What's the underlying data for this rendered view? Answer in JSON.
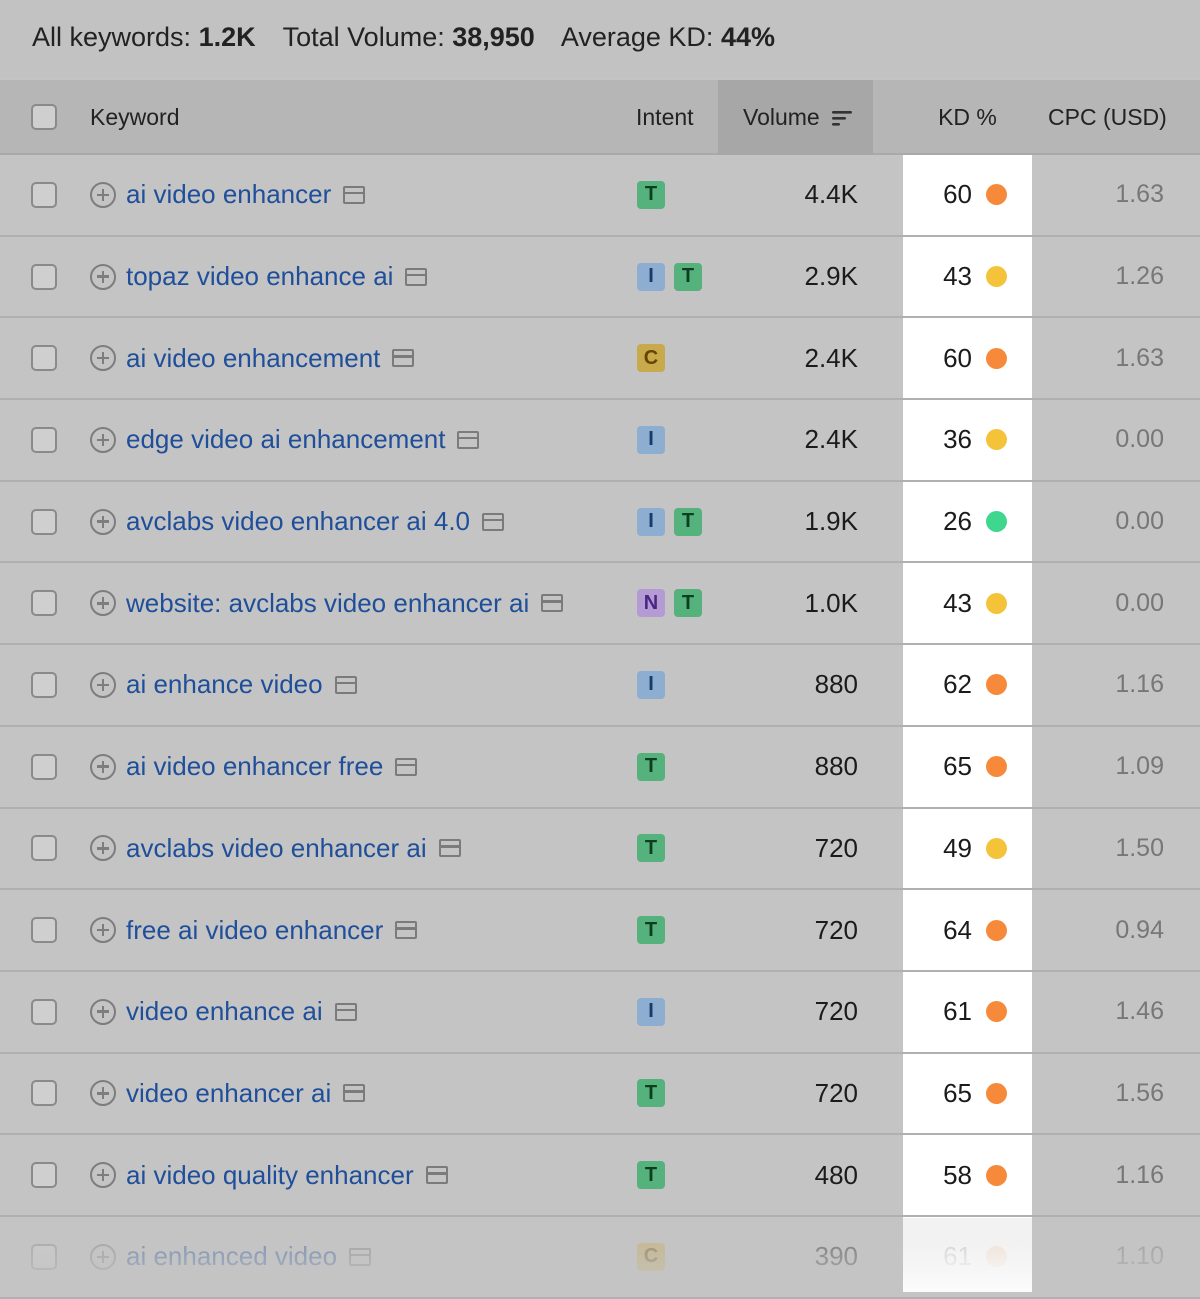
{
  "summary": {
    "all_keywords_label": "All keywords:",
    "all_keywords_value": "1.2K",
    "total_volume_label": "Total Volume:",
    "total_volume_value": "38,950",
    "avg_kd_label": "Average KD:",
    "avg_kd_value": "44%"
  },
  "columns": {
    "keyword": "Keyword",
    "intent": "Intent",
    "volume": "Volume",
    "kd": "KD %",
    "cpc": "CPC (USD)"
  },
  "colors": {
    "kd_orange": "#f68a3a",
    "kd_yellow": "#f5c33a",
    "kd_green": "#3fd68d",
    "keyword_link": "#1f4f9a"
  },
  "rows": [
    {
      "keyword": "ai video enhancer",
      "intents": [
        "T"
      ],
      "volume": "4.4K",
      "kd": "60",
      "kd_level": "orange",
      "cpc": "1.63"
    },
    {
      "keyword": "topaz video enhance ai",
      "intents": [
        "I",
        "T"
      ],
      "volume": "2.9K",
      "kd": "43",
      "kd_level": "yellow",
      "cpc": "1.26"
    },
    {
      "keyword": "ai video enhancement",
      "intents": [
        "C"
      ],
      "volume": "2.4K",
      "kd": "60",
      "kd_level": "orange",
      "cpc": "1.63"
    },
    {
      "keyword": "edge video ai enhancement",
      "intents": [
        "I"
      ],
      "volume": "2.4K",
      "kd": "36",
      "kd_level": "yellow",
      "cpc": "0.00"
    },
    {
      "keyword": "avclabs video enhancer ai 4.0",
      "intents": [
        "I",
        "T"
      ],
      "volume": "1.9K",
      "kd": "26",
      "kd_level": "green",
      "cpc": "0.00"
    },
    {
      "keyword": "website: avclabs video enhancer ai",
      "intents": [
        "N",
        "T"
      ],
      "volume": "1.0K",
      "kd": "43",
      "kd_level": "yellow",
      "cpc": "0.00"
    },
    {
      "keyword": "ai enhance video",
      "intents": [
        "I"
      ],
      "volume": "880",
      "kd": "62",
      "kd_level": "orange",
      "cpc": "1.16"
    },
    {
      "keyword": "ai video enhancer free",
      "intents": [
        "T"
      ],
      "volume": "880",
      "kd": "65",
      "kd_level": "orange",
      "cpc": "1.09"
    },
    {
      "keyword": "avclabs video enhancer ai",
      "intents": [
        "T"
      ],
      "volume": "720",
      "kd": "49",
      "kd_level": "yellow",
      "cpc": "1.50"
    },
    {
      "keyword": "free ai video enhancer",
      "intents": [
        "T"
      ],
      "volume": "720",
      "kd": "64",
      "kd_level": "orange",
      "cpc": "0.94"
    },
    {
      "keyword": "video enhance ai",
      "intents": [
        "I"
      ],
      "volume": "720",
      "kd": "61",
      "kd_level": "orange",
      "cpc": "1.46"
    },
    {
      "keyword": "video enhancer ai",
      "intents": [
        "T"
      ],
      "volume": "720",
      "kd": "65",
      "kd_level": "orange",
      "cpc": "1.56"
    },
    {
      "keyword": "ai video quality enhancer",
      "intents": [
        "T"
      ],
      "volume": "480",
      "kd": "58",
      "kd_level": "orange",
      "cpc": "1.16"
    },
    {
      "keyword": "ai enhanced video",
      "intents": [
        "C"
      ],
      "volume": "390",
      "kd": "61",
      "kd_level": "orange",
      "cpc": "1.10"
    }
  ]
}
